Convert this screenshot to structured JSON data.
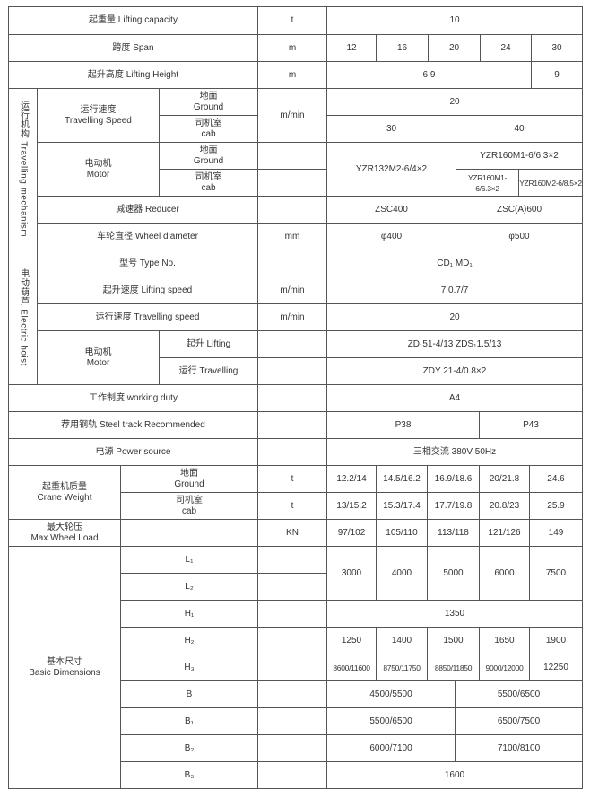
{
  "spec_table": {
    "lifting_capacity": {
      "label": "起重量 Lifting capacity",
      "unit": "t",
      "value": "10"
    },
    "span": {
      "label": "跨度 Span",
      "unit": "m",
      "values": [
        "12",
        "16",
        "20",
        "24",
        "30"
      ]
    },
    "lifting_height": {
      "label": "起升高度 Lifting Height",
      "unit": "m",
      "values": [
        "6,9",
        "9"
      ]
    },
    "travelling_mechanism": {
      "section_label": "运行机构 Travelling mechanism",
      "speed": {
        "label": "运行速度\nTravelling Speed",
        "ground_label": "地面\nGround",
        "cab_label": "司机室\ncab",
        "unit": "m/min",
        "ground_value": "20",
        "cab_values": [
          "30",
          "40"
        ]
      },
      "motor": {
        "label": "电动机\nMotor",
        "ground_label": "地面\nGround",
        "cab_label": "司机室\ncab",
        "shared_value": "YZR132M2-6/4×2",
        "ground_value": "YZR160M1-6/6.3×2",
        "cab_values": [
          "YZR160M1-6/6.3×2",
          "YZR160M2-6/8.5×2"
        ]
      },
      "reducer": {
        "label": "减速器 Reducer",
        "values": [
          "ZSC400",
          "ZSC(A)600"
        ]
      },
      "wheel_diameter": {
        "label": "车轮直径 Wheel diameter",
        "unit": "mm",
        "values": [
          "φ400",
          "φ500"
        ]
      }
    },
    "electric_hoist": {
      "section_label": "电动葫芦 Electric hoist",
      "type": {
        "label": "型号 Type No.",
        "value": "CD₁        MD₁"
      },
      "lifting_speed": {
        "label": "起升速度 Lifting speed",
        "unit": "m/min",
        "value": "7        0.7/7"
      },
      "travelling_speed": {
        "label": "运行速度 Travelling speed",
        "unit": "m/min",
        "value": "20"
      },
      "motor": {
        "label": "电动机\nMotor",
        "lifting_label": "起升 Lifting",
        "travelling_label": "运行 Travelling",
        "lifting_value": "ZD₁51-4/13                ZDS₁1.5/13",
        "travelling_value": "ZDY 21-4/0.8×2"
      }
    },
    "working_duty": {
      "label": "工作制度 working duty",
      "value": "A4"
    },
    "steel_track": {
      "label": "荐用钢轨 Steel track Recommended",
      "values": [
        "P38",
        "P43"
      ]
    },
    "power_source": {
      "label": "电源 Power source",
      "value": "三相交流  380V  50Hz"
    },
    "crane_weight": {
      "label": "起重机质量\nCrane Weight",
      "ground_label": "地面\nGround",
      "cab_label": "司机室\ncab",
      "unit": "t",
      "ground_values": [
        "12.2/14",
        "14.5/16.2",
        "16.9/18.6",
        "20/21.8",
        "24.6"
      ],
      "cab_values": [
        "13/15.2",
        "15.3/17.4",
        "17.7/19.8",
        "20.8/23",
        "25.9"
      ]
    },
    "max_wheel_load": {
      "label": "最大轮压\nMax.Wheel Load",
      "unit": "KN",
      "values": [
        "97/102",
        "105/110",
        "113/118",
        "121/126",
        "149"
      ]
    },
    "basic_dimensions": {
      "label": "基本尺寸\nBasic Dimensions",
      "rows": [
        "L₁",
        "L₂",
        "H₁",
        "H₂",
        "H₃",
        "B",
        "B₁",
        "B₂",
        "B₃"
      ],
      "L": [
        "3000",
        "4000",
        "5000",
        "6000",
        "7500"
      ],
      "H1": "1350",
      "H2": [
        "1250",
        "1400",
        "1500",
        "1650",
        "1900"
      ],
      "H3": [
        "8600/11600",
        "8750/11750",
        "8850/11850",
        "9000/12000",
        "12250"
      ],
      "B": [
        "4500/5500",
        "5500/6500"
      ],
      "B1": [
        "5500/6500",
        "6500/7500"
      ],
      "B2": [
        "6000/7100",
        "7100/8100"
      ],
      "B3": "1600"
    }
  }
}
